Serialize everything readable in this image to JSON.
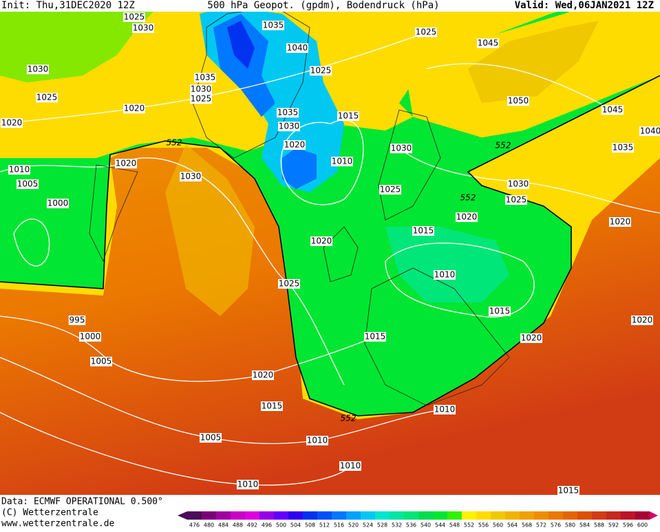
{
  "header": {
    "init": "Init: Thu,31DEC2020 12Z",
    "title": "500 hPa Geopot. (gpdm), Bodendruck (hPa)",
    "valid": "Valid: Wed,06JAN2021 12Z"
  },
  "map": {
    "isobar_labels": [
      "1025",
      "1030",
      "1035",
      "1040",
      "1025",
      "1045",
      "1030",
      "1035",
      "1025",
      "1030",
      "1025",
      "1025",
      "1020",
      "1050",
      "1045",
      "1015",
      "1035",
      "1030",
      "1020",
      "1040",
      "1020",
      "1030",
      "1035",
      "1010",
      "1020",
      "1010",
      "1030",
      "1005",
      "1030",
      "1025",
      "1025",
      "1000",
      "1020",
      "1020",
      "1015",
      "1020",
      "1010",
      "1025",
      "1015",
      "995",
      "1020",
      "1000",
      "1015",
      "1020",
      "1005",
      "1020",
      "1015",
      "1010",
      "1005",
      "1010",
      "1010",
      "1010",
      "1015"
    ],
    "contour_labels": [
      "552",
      "552",
      "552",
      "552"
    ]
  },
  "footer": {
    "data": "Data: ECMWF OPERATIONAL 0.500°",
    "copyright": "(C) Wetterzentrale",
    "url": "www.wetterzentrale.de"
  },
  "colorbar": {
    "labels": [
      476,
      480,
      484,
      488,
      492,
      496,
      500,
      504,
      508,
      512,
      516,
      520,
      524,
      528,
      532,
      536,
      540,
      544,
      548,
      552,
      556,
      560,
      564,
      568,
      572,
      576,
      580,
      584,
      588,
      592,
      596,
      600
    ],
    "colors": [
      "#4b0a5a",
      "#7a007a",
      "#a000a0",
      "#c800c8",
      "#dc00dc",
      "#9600e6",
      "#6400ff",
      "#3200f0",
      "#0032f0",
      "#0050ff",
      "#0078ff",
      "#00a0ff",
      "#00c8f0",
      "#00e6d2",
      "#00e6a0",
      "#00e678",
      "#00dc50",
      "#00e632",
      "#32f000",
      "#fff000",
      "#ffdc00",
      "#f0c800",
      "#f0b400",
      "#f0a000",
      "#f08c00",
      "#eb7800",
      "#e66400",
      "#dc5000",
      "#d23c14",
      "#c8281e",
      "#be1428",
      "#aa0032"
    ]
  }
}
